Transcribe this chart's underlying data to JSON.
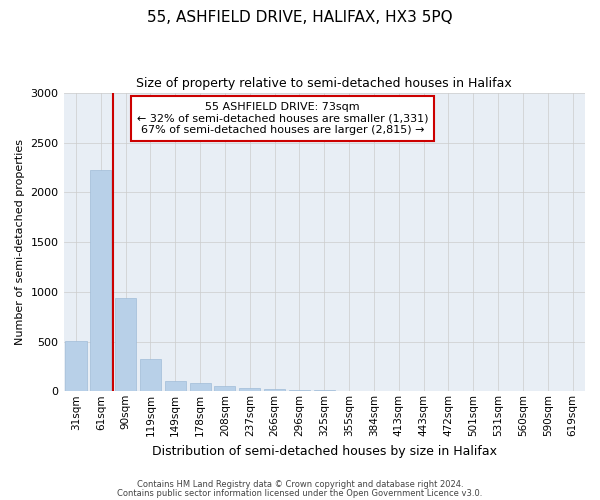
{
  "title": "55, ASHFIELD DRIVE, HALIFAX, HX3 5PQ",
  "subtitle": "Size of property relative to semi-detached houses in Halifax",
  "xlabel": "Distribution of semi-detached houses by size in Halifax",
  "ylabel": "Number of semi-detached properties",
  "property_label": "55 ASHFIELD DRIVE: 73sqm",
  "pct_smaller": 32,
  "pct_larger": 67,
  "count_smaller": 1331,
  "count_larger": 2815,
  "categories": [
    "31sqm",
    "61sqm",
    "90sqm",
    "119sqm",
    "149sqm",
    "178sqm",
    "208sqm",
    "237sqm",
    "266sqm",
    "296sqm",
    "325sqm",
    "355sqm",
    "384sqm",
    "413sqm",
    "443sqm",
    "472sqm",
    "501sqm",
    "531sqm",
    "560sqm",
    "590sqm",
    "619sqm"
  ],
  "values": [
    510,
    2230,
    940,
    320,
    100,
    80,
    50,
    35,
    20,
    12,
    8,
    5,
    3,
    0,
    0,
    0,
    0,
    0,
    0,
    0,
    0
  ],
  "bar_color": "#b8d0e8",
  "bar_edge_color": "#a0bcd8",
  "grid_color": "#cccccc",
  "bg_color": "#e8eef5",
  "vline_color": "#cc0000",
  "vline_x": 1.5,
  "annotation_box_edge": "#cc0000",
  "ylim": [
    0,
    3000
  ],
  "yticks": [
    0,
    500,
    1000,
    1500,
    2000,
    2500,
    3000
  ],
  "title_fontsize": 11,
  "subtitle_fontsize": 9,
  "footer_line1": "Contains HM Land Registry data © Crown copyright and database right 2024.",
  "footer_line2": "Contains public sector information licensed under the Open Government Licence v3.0."
}
